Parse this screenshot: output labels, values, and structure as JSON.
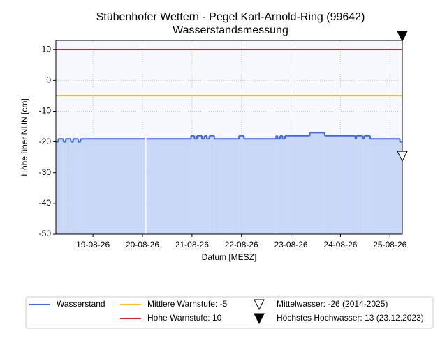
{
  "chart_data": {
    "type": "step-area",
    "title": "Stübenhofer Wettern - Pegel Karl-Arnold-Ring (99642)",
    "subtitle": "Wasserstandsmessung",
    "x_label": "Datum [MESZ]",
    "y_label": "Höhe über NHN [cm]",
    "xlim": [
      18.25,
      25.25
    ],
    "xticks": [
      {
        "value": 19,
        "label": "19-08-26"
      },
      {
        "value": 20,
        "label": "20-08-26"
      },
      {
        "value": 21,
        "label": "21-08-26"
      },
      {
        "value": 22,
        "label": "22-08-26"
      },
      {
        "value": 23,
        "label": "23-08-26"
      },
      {
        "value": 24,
        "label": "24-08-26"
      },
      {
        "value": 25,
        "label": "25-08-26"
      }
    ],
    "ylim": [
      -50,
      13
    ],
    "yticks": [
      -50,
      -40,
      -30,
      -20,
      -10,
      0,
      10
    ],
    "grid": true,
    "series": [
      {
        "name": "Wasserstand",
        "color": "#4169e1",
        "fill": "#c8d8f6",
        "x": [
          18.25,
          18.3,
          18.4,
          18.45,
          18.55,
          18.6,
          18.7,
          18.75,
          20.05,
          20.08,
          20.98,
          21.05,
          21.1,
          21.2,
          21.25,
          21.3,
          21.35,
          21.45,
          21.95,
          22.05,
          22.7,
          22.73,
          22.78,
          22.83,
          22.88,
          23.38,
          23.68,
          24.3,
          24.32,
          24.45,
          24.48,
          24.6,
          25.2,
          25.25
        ],
        "values": [
          -20,
          -19,
          -20,
          -19,
          -20,
          -19,
          -20,
          -19,
          null,
          -19,
          -18,
          -19,
          -18,
          -19,
          -18,
          -19,
          -18,
          -19,
          -18,
          -19,
          -18,
          -19,
          -18,
          -19,
          -18,
          -17,
          -18,
          -19,
          -18,
          -19,
          -18,
          -19,
          -20,
          -20
        ]
      }
    ],
    "reference_lines": [
      {
        "name": "Mittlere Warnstufe: -5",
        "value": -5,
        "color": "#ffc000"
      },
      {
        "name": "Hohe Warnstufe: 10",
        "value": 10,
        "color": "#e02020"
      }
    ],
    "markers": [
      {
        "name": "Mittelwasser: -26 (2014-2025)",
        "value": -26,
        "filled": false
      },
      {
        "name": "Höchstes Hochwasser: 13 (23.12.2023)",
        "value": 13,
        "filled": true
      }
    ]
  }
}
